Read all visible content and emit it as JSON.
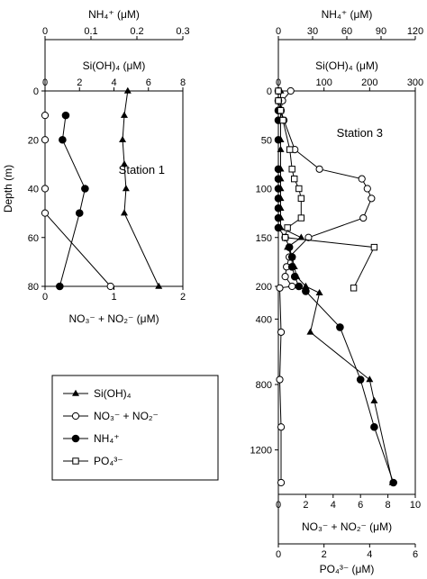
{
  "chart_data": [
    {
      "type": "line",
      "panel": "Station 1",
      "station_label": "Station 1",
      "ylabel": "Depth (m)",
      "y_axis": {
        "label": "Depth (m)",
        "range": [
          80,
          0
        ],
        "ticks": [
          0,
          20,
          40,
          60,
          80
        ]
      },
      "axes": {
        "top1": {
          "label": "NH₄⁺ (μM)",
          "range": [
            0,
            0.3
          ],
          "ticks": [
            "0",
            "0.1",
            "0.2",
            "0.3"
          ]
        },
        "top2": {
          "label": "Si(OH)₄ (μM)",
          "range": [
            0,
            8
          ],
          "ticks": [
            "0",
            "2",
            "4",
            "6",
            "8"
          ]
        },
        "bottom": {
          "label": "NO₃⁻ + NO₂⁻ (μM)",
          "range": [
            0,
            2
          ],
          "ticks": [
            "0",
            "1",
            "2"
          ]
        }
      },
      "series": [
        {
          "name": "Si(OH)₄",
          "marker": "triangle",
          "points": [
            [
              4.8,
              0
            ],
            [
              4.6,
              10
            ],
            [
              4.5,
              20
            ],
            [
              4.6,
              30
            ],
            [
              4.7,
              40
            ],
            [
              4.6,
              50
            ],
            [
              6.6,
              80
            ]
          ]
        },
        {
          "name": "NO₃⁻ + NO₂⁻",
          "marker": "open-circle",
          "points": [
            [
              0,
              10
            ],
            [
              0,
              20
            ],
            [
              0,
              40
            ],
            [
              0,
              50
            ],
            [
              0.95,
              80
            ]
          ]
        },
        {
          "name": "NH₄⁺",
          "marker": "filled-circle",
          "points": [
            [
              0.045,
              10
            ],
            [
              0.038,
              20
            ],
            [
              0.087,
              40
            ],
            [
              0.075,
              50
            ],
            [
              0.032,
              80
            ]
          ]
        }
      ]
    },
    {
      "type": "line",
      "panel": "Station 3",
      "station_label": "Station 3",
      "y_axis": {
        "label": "",
        "scale": "piecewise",
        "break_at": 200,
        "ticks": [
          0,
          50,
          100,
          150,
          200,
          400,
          800,
          1200
        ]
      },
      "axes": {
        "top1": {
          "label": "NH₄⁺ (μM)",
          "range": [
            0,
            120
          ],
          "ticks": [
            "0",
            "30",
            "60",
            "90",
            "120"
          ]
        },
        "top2": {
          "label": "Si(OH)₄ (μM)",
          "range": [
            0,
            300
          ],
          "ticks": [
            "0",
            "100",
            "200",
            "300"
          ]
        },
        "bottom1": {
          "label": "NO₃⁻ + NO₂⁻ (μM)",
          "range": [
            0,
            10
          ],
          "ticks": [
            "0",
            "2",
            "4",
            "6",
            "8",
            "10"
          ]
        },
        "bottom2": {
          "label": "PO₄³⁻ (μM)",
          "range": [
            0,
            6
          ],
          "ticks": [
            "0",
            "2",
            "4",
            "6"
          ]
        }
      },
      "series": [
        {
          "name": "Si(OH)₄",
          "marker": "triangle",
          "points": [
            [
              5,
              0
            ],
            [
              5,
              10
            ],
            [
              5,
              20
            ],
            [
              5,
              30
            ],
            [
              5,
              50
            ],
            [
              5,
              60
            ],
            [
              5,
              80
            ],
            [
              5,
              90
            ],
            [
              5,
              100
            ],
            [
              5,
              110
            ],
            [
              5,
              120
            ],
            [
              5,
              130
            ],
            [
              5,
              140
            ],
            [
              50,
              150
            ],
            [
              20,
              160
            ],
            [
              30,
              170
            ],
            [
              35,
              180
            ],
            [
              40,
              190
            ],
            [
              60,
              200
            ],
            [
              90,
              240
            ],
            [
              70,
              480
            ],
            [
              200,
              770
            ],
            [
              210,
              900
            ],
            [
              250,
              1400
            ]
          ]
        },
        {
          "name": "NO₃⁻ + NO₂⁻",
          "marker": "open-circle",
          "points": [
            [
              0.9,
              0
            ],
            [
              0.3,
              10
            ],
            [
              0.2,
              20
            ],
            [
              0.4,
              30
            ],
            [
              1.2,
              60
            ],
            [
              3.0,
              80
            ],
            [
              6.1,
              90
            ],
            [
              6.5,
              100
            ],
            [
              6.8,
              110
            ],
            [
              6.2,
              130
            ],
            [
              2.2,
              150
            ],
            [
              0.8,
              170
            ],
            [
              0.6,
              180
            ],
            [
              0.5,
              190
            ],
            [
              1.0,
              200
            ],
            [
              0.1,
              210
            ],
            [
              0.2,
              480
            ],
            [
              0.1,
              770
            ],
            [
              0.2,
              1060
            ],
            [
              0.2,
              1400
            ]
          ]
        },
        {
          "name": "NH₄⁺",
          "marker": "filled-circle",
          "points": [
            [
              0,
              0
            ],
            [
              0,
              10
            ],
            [
              0,
              20
            ],
            [
              0,
              30
            ],
            [
              0,
              50
            ],
            [
              0,
              80
            ],
            [
              0,
              90
            ],
            [
              0,
              100
            ],
            [
              0,
              110
            ],
            [
              0,
              120
            ],
            [
              0,
              130
            ],
            [
              0,
              140
            ],
            [
              0.5,
              150
            ],
            [
              0.8,
              160
            ],
            [
              1.0,
              170
            ],
            [
              1.0,
              180
            ],
            [
              1.2,
              190
            ],
            [
              1.5,
              200
            ],
            [
              2.0,
              230
            ],
            [
              4.5,
              450
            ],
            [
              6.0,
              770
            ],
            [
              7.0,
              1060
            ],
            [
              8.4,
              1400
            ]
          ]
        },
        {
          "name": "PO₄³⁻",
          "marker": "open-square",
          "points": [
            [
              0,
              0
            ],
            [
              0,
              10
            ],
            [
              0.1,
              20
            ],
            [
              0.2,
              30
            ],
            [
              0.5,
              60
            ],
            [
              0.6,
              80
            ],
            [
              0.7,
              90
            ],
            [
              0.9,
              100
            ],
            [
              1.0,
              110
            ],
            [
              1.0,
              130
            ],
            [
              0.4,
              140
            ],
            [
              0.3,
              150
            ],
            [
              4.2,
              160
            ],
            [
              3.3,
              210
            ]
          ]
        }
      ]
    }
  ],
  "legend": {
    "items": [
      {
        "label": "Si(OH)₄",
        "marker": "triangle"
      },
      {
        "label": "NO₃⁻ + NO₂⁻",
        "marker": "open-circle"
      },
      {
        "label": "NH₄⁺",
        "marker": "filled-circle"
      },
      {
        "label": "PO₄³⁻",
        "marker": "open-square"
      }
    ]
  }
}
